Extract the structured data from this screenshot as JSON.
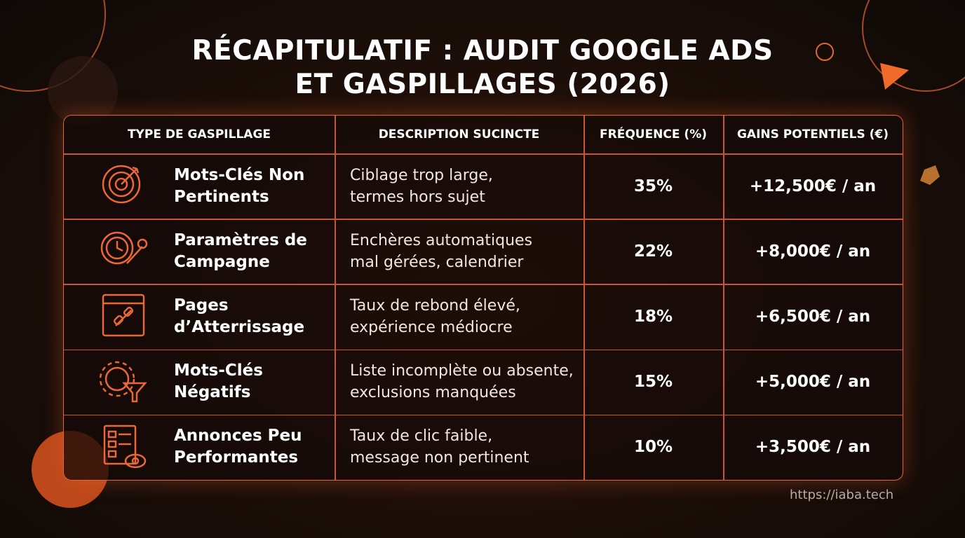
{
  "header": {
    "title": [
      "RÉCAPITULATIF : AUDIT GOOGLE ADS",
      "ET GASPILLAGES (2026)"
    ]
  },
  "table": {
    "columns": [
      "TYPE DE GASPILLAGE",
      "DESCRIPTION SUCINCTE",
      "FRÉQUENCE (%)",
      "GAINS POTENTIELS (€)"
    ],
    "rows": [
      {
        "type": [
          "Mots-Clés Non",
          "Pertinents"
        ],
        "description": [
          "Ciblage trop large,",
          "termes hors sujet"
        ],
        "frequency": "35%",
        "gains": "+12,500€ / an"
      },
      {
        "type": [
          "Paramètres de",
          "Campagne"
        ],
        "description": [
          "Enchères automatiques",
          "mal gérées, calendrier"
        ],
        "frequency": "22%",
        "gains": "+8,000€ / an"
      },
      {
        "type": [
          "Pages",
          "d’Atterrissage"
        ],
        "description": [
          "Taux de rebond élevé,",
          "expérience médiocre"
        ],
        "frequency": "18%",
        "gains": "+6,500€ / an"
      },
      {
        "type": [
          "Mots-Clés",
          "Négatifs"
        ],
        "description": [
          "Liste incomplète ou absente,",
          "exclusions manquées"
        ],
        "frequency": "15%",
        "gains": "+5,000€ / an"
      },
      {
        "type": [
          "Annonces Peu",
          "Performantes"
        ],
        "description": [
          "Taux de clic faible,",
          "message non pertinent"
        ],
        "frequency": "10%",
        "gains": "+3,500€ / an"
      }
    ]
  },
  "footer": {
    "url": "https://iaba.tech"
  }
}
